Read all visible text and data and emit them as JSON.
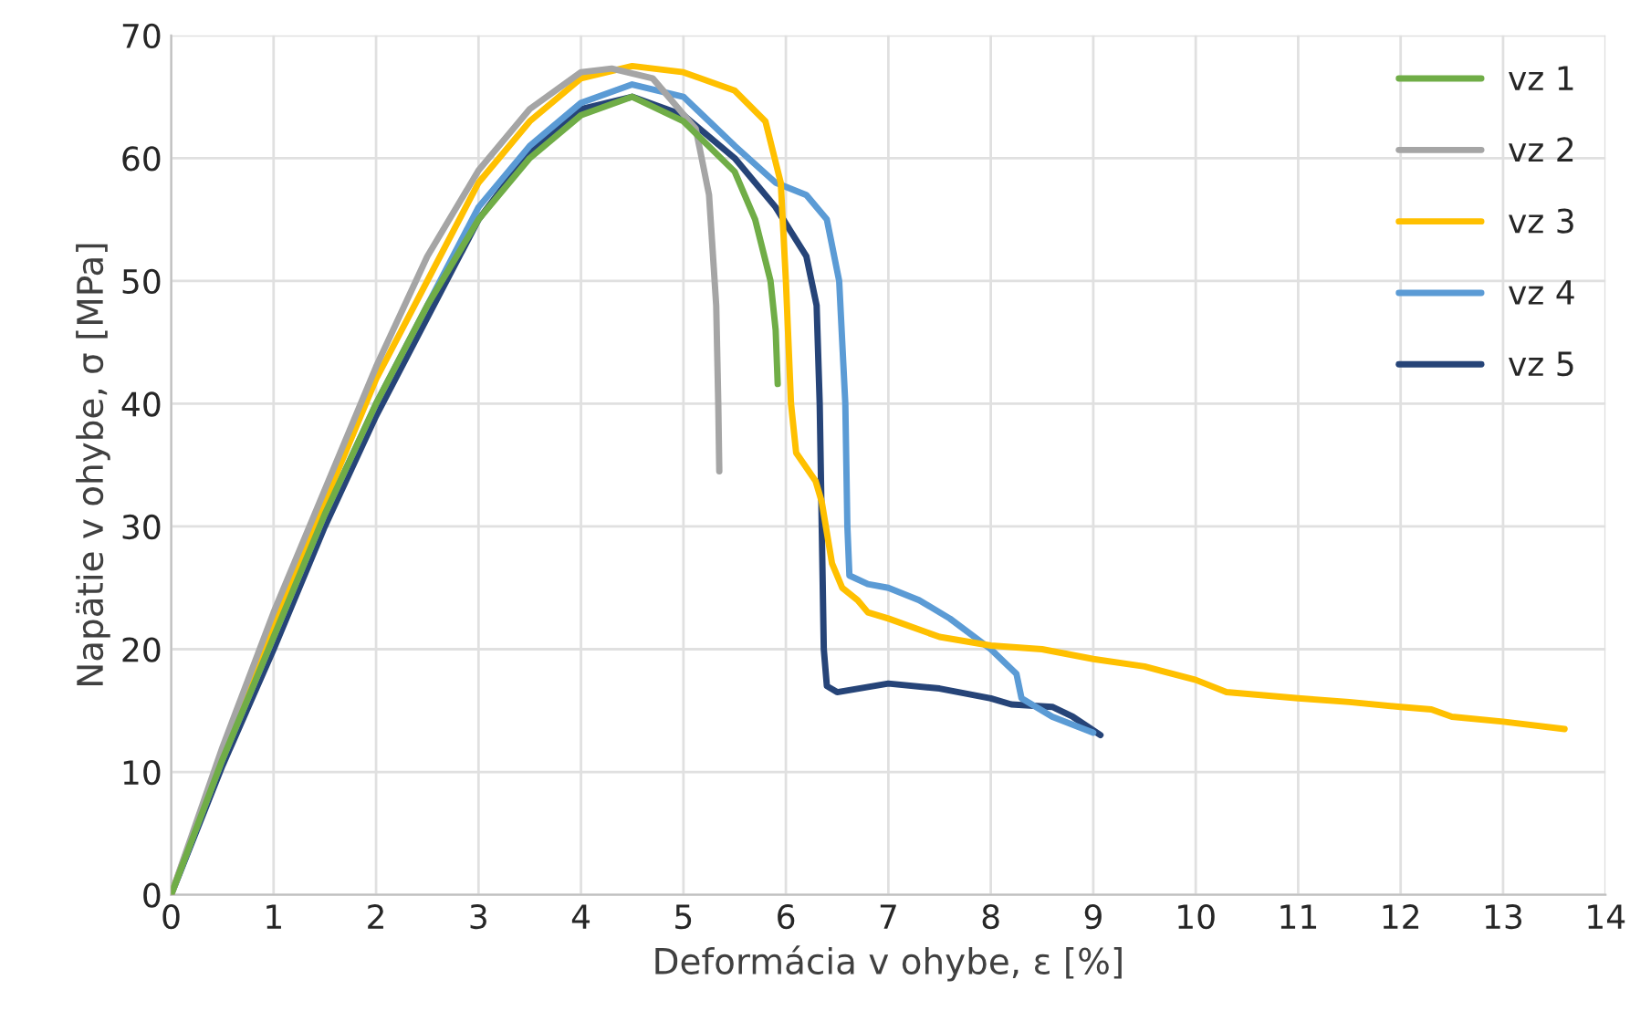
{
  "chart_data": {
    "type": "line",
    "xlabel": "Deformácia v ohybe, ε [%]",
    "ylabel": "Napätie v ohybe, σ [MPa]",
    "xlim": [
      0,
      14
    ],
    "xticks": [
      0,
      1,
      2,
      3,
      4,
      5,
      6,
      7,
      8,
      9,
      10,
      11,
      12,
      13,
      14
    ],
    "ylim": [
      0,
      70
    ],
    "yticks": [
      0,
      10,
      20,
      30,
      40,
      50,
      60,
      70
    ],
    "grid": true,
    "legend": "top right",
    "marker": "none",
    "line_style": "solid",
    "series": [
      {
        "name": "vz 1",
        "color": "#70ad47",
        "x": [
          0,
          0.5,
          1,
          1.5,
          2,
          2.5,
          3,
          3.5,
          4,
          4.5,
          5,
          5.5,
          5.7,
          5.85,
          5.9,
          5.92
        ],
        "values": [
          0,
          11,
          21,
          31,
          40,
          48,
          55,
          60,
          63.5,
          65,
          63,
          58.9,
          55,
          50,
          46,
          41.6
        ]
      },
      {
        "name": "vz 2",
        "color": "#a5a5a5",
        "x": [
          0,
          0.5,
          1,
          1.5,
          2,
          2.5,
          3,
          3.5,
          4,
          4.3,
          4.7,
          5.12,
          5.25,
          5.32,
          5.34,
          5.35
        ],
        "values": [
          0,
          12,
          23,
          33,
          43,
          52,
          59,
          64,
          67,
          67.3,
          66.5,
          62.4,
          57,
          48,
          40,
          34.5
        ]
      },
      {
        "name": "vz 3",
        "color": "#ffc000",
        "x": [
          0,
          0.5,
          1,
          1.5,
          2,
          2.5,
          3,
          3.5,
          4,
          4.5,
          5,
          5.5,
          5.8,
          5.95,
          6.0,
          6.05,
          6.1,
          6.29,
          6.35,
          6.45,
          6.55,
          6.7,
          6.8,
          7,
          7.5,
          8,
          8.5,
          9,
          9.5,
          10,
          10.3,
          11,
          11.5,
          12,
          12.3,
          12.5,
          13,
          13.6
        ],
        "values": [
          0,
          11.5,
          22,
          32,
          42,
          50,
          58,
          63,
          66.5,
          67.5,
          67,
          65.5,
          63,
          58,
          50,
          40,
          36,
          33.7,
          32,
          27,
          25,
          24,
          23,
          22.5,
          21,
          20.3,
          20,
          19.2,
          18.6,
          17.5,
          16.5,
          16,
          15.7,
          15.3,
          15.1,
          14.5,
          14.1,
          13.5
        ]
      },
      {
        "name": "vz 4",
        "color": "#5b9bd5",
        "x": [
          0,
          0.5,
          1,
          1.5,
          2,
          2.5,
          3,
          3.5,
          4,
          4.5,
          5,
          5.5,
          5.9,
          6.2,
          6.4,
          6.52,
          6.58,
          6.6,
          6.62,
          6.8,
          7,
          7.3,
          7.6,
          8,
          8.25,
          8.3,
          8.6,
          9
        ],
        "values": [
          0,
          11,
          21,
          31,
          40,
          48,
          56,
          61,
          64.5,
          66,
          65,
          61,
          58,
          57,
          55,
          50,
          40,
          30,
          26,
          25.3,
          25,
          24,
          22.5,
          20,
          18,
          16,
          14.5,
          13.2
        ]
      },
      {
        "name": "vz 5",
        "color": "#264478",
        "x": [
          0,
          0.5,
          1,
          1.5,
          2,
          2.5,
          3,
          3.5,
          4,
          4.5,
          5,
          5.5,
          5.9,
          6.2,
          6.3,
          6.33,
          6.35,
          6.37,
          6.4,
          6.5,
          7,
          7.5,
          8,
          8.2,
          8.6,
          8.8,
          9.07
        ],
        "values": [
          0,
          10.5,
          20,
          30,
          39,
          47,
          55,
          60.5,
          64,
          65,
          63.5,
          60,
          56,
          52,
          48,
          40,
          30,
          20,
          17,
          16.5,
          17.2,
          16.8,
          16,
          15.5,
          15.3,
          14.5,
          13
        ]
      }
    ]
  }
}
